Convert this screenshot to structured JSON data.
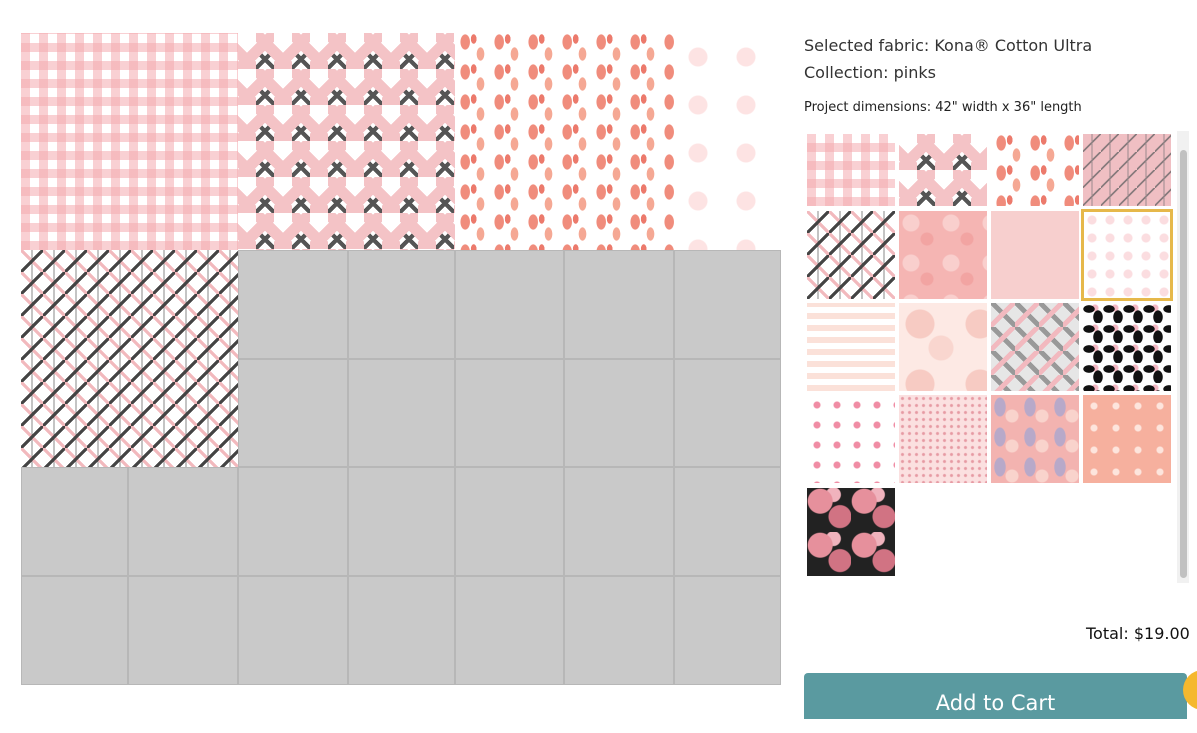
{
  "info": {
    "selected_fabric": "Selected fabric: Kona® Cotton Ultra",
    "collection": "Collection: pinks",
    "dimensions": "Project dimensions: 42\" width x 36\" length"
  },
  "quilt": {
    "filled_blocks": [
      {
        "name": "pink-gingham",
        "pattern": "gingham"
      },
      {
        "name": "pink-gray-chevron",
        "pattern": "chevron"
      },
      {
        "name": "flamingo",
        "pattern": "flamingo"
      },
      {
        "name": "pale-star",
        "pattern": "star"
      },
      {
        "name": "gray-pink-arrows",
        "pattern": "arrows"
      }
    ]
  },
  "swatches": [
    {
      "name": "pink-gingham",
      "pattern": "gingham"
    },
    {
      "name": "pink-gray-chevron",
      "pattern": "chevron"
    },
    {
      "name": "flamingo",
      "pattern": "flamingo"
    },
    {
      "name": "pink-arrow-stripe",
      "pattern": "pinkarrows"
    },
    {
      "name": "gray-pink-arrows",
      "pattern": "arrows"
    },
    {
      "name": "pink-floral-print",
      "pattern": "floralpink"
    },
    {
      "name": "blush-solid",
      "pattern": "blush"
    },
    {
      "name": "pale-pink-stars",
      "pattern": "dotstar",
      "selected": true
    },
    {
      "name": "peach-stripe",
      "pattern": "stripe"
    },
    {
      "name": "watercolor-roses",
      "pattern": "rose"
    },
    {
      "name": "gray-pink-herringbone",
      "pattern": "grayzig"
    },
    {
      "name": "leopard",
      "pattern": "leopard"
    },
    {
      "name": "pink-stars",
      "pattern": "pinkstar"
    },
    {
      "name": "pink-speckle",
      "pattern": "speckle"
    },
    {
      "name": "pink-paisley",
      "pattern": "paisley"
    },
    {
      "name": "peach-stars",
      "pattern": "peachstar"
    },
    {
      "name": "black-pink-floral",
      "pattern": "blackfloral"
    }
  ],
  "total": "Total: $19.00",
  "cart": {
    "add_label": "Add to Cart"
  }
}
